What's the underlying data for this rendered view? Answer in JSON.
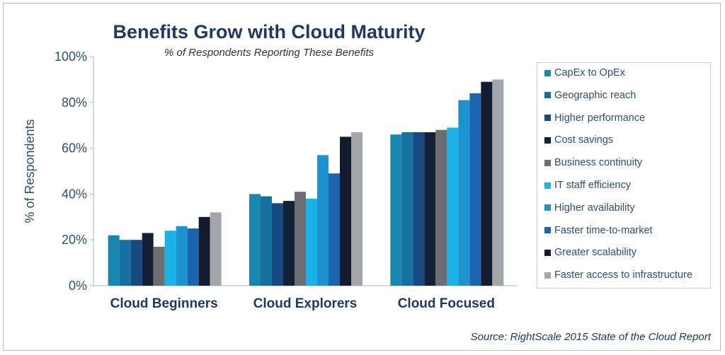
{
  "chart_data": {
    "type": "bar",
    "title": "Benefits Grow with Cloud Maturity",
    "subtitle": "% of Respondents Reporting These Benefits",
    "xlabel": "",
    "ylabel": "% of Respondents",
    "ylim": [
      0,
      100
    ],
    "yticks": [
      "0%",
      "20%",
      "40%",
      "60%",
      "80%",
      "100%"
    ],
    "grid": false,
    "legend_position": "right",
    "categories": [
      "Cloud Beginners",
      "Cloud Explorers",
      "Cloud Focused"
    ],
    "series": [
      {
        "name": "CapEx to OpEx",
        "color": "#1a87b0",
        "values": [
          22,
          40,
          66
        ]
      },
      {
        "name": "Geographic reach",
        "color": "#1670a0",
        "values": [
          20,
          39,
          67
        ]
      },
      {
        "name": "Higher performance",
        "color": "#164a82",
        "values": [
          20,
          36,
          67
        ]
      },
      {
        "name": "Cost savings",
        "color": "#142035",
        "values": [
          23,
          37,
          67
        ]
      },
      {
        "name": "Business continuity",
        "color": "#6e6e72",
        "values": [
          17,
          41,
          68
        ]
      },
      {
        "name": "IT staff efficiency",
        "color": "#1ab0e8",
        "values": [
          24,
          38,
          69
        ]
      },
      {
        "name": "Higher availability",
        "color": "#1e93d0",
        "values": [
          26,
          57,
          81
        ]
      },
      {
        "name": "Faster time-to-market",
        "color": "#1a64b0",
        "values": [
          25,
          49,
          84
        ]
      },
      {
        "name": "Greater scalability",
        "color": "#141c2e",
        "values": [
          30,
          65,
          89
        ]
      },
      {
        "name": "Faster access to infrastructure",
        "color": "#a4a6a9",
        "values": [
          32,
          67,
          90
        ]
      }
    ],
    "source": "Source: RightScale 2015 State of the Cloud Report"
  },
  "colors": {
    "title": "#1f3864",
    "axis": "#b0b5ba",
    "text": "#2f4f6f"
  }
}
